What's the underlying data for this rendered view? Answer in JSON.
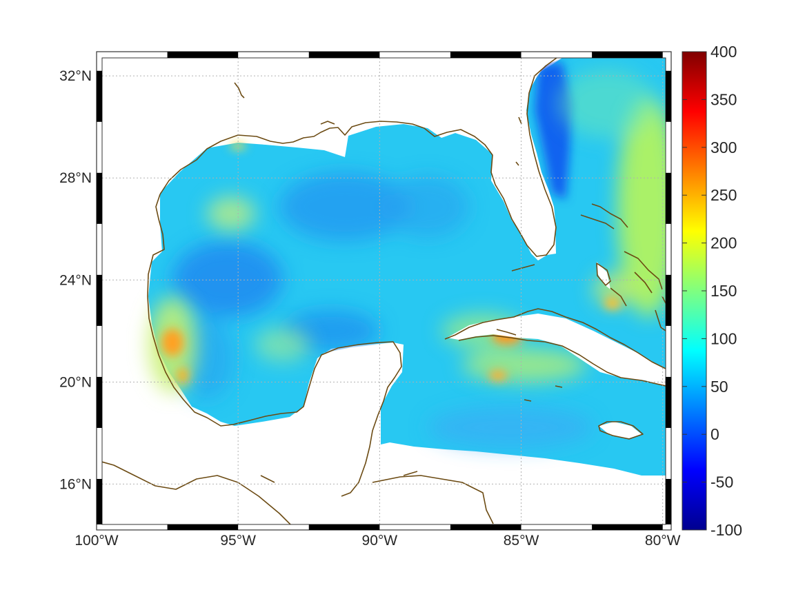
{
  "map": {
    "lon_range": [
      -100,
      -79.7
    ],
    "lat_range": [
      14.2,
      32.95
    ],
    "lat_ticks": [
      {
        "value": 32,
        "label": "32°N"
      },
      {
        "value": 28,
        "label": "28°N"
      },
      {
        "value": 24,
        "label": "24°N"
      },
      {
        "value": 20,
        "label": "20°N"
      },
      {
        "value": 16,
        "label": "16°N"
      }
    ],
    "lon_ticks": [
      {
        "value": -100,
        "label": "100°W"
      },
      {
        "value": -95,
        "label": "95°W"
      },
      {
        "value": -90,
        "label": "90°W"
      },
      {
        "value": -85,
        "label": "85°W"
      },
      {
        "value": -80,
        "label": "80°W"
      }
    ],
    "gridlines": true,
    "coastline_color": "#6b4a12",
    "colormap": "jet"
  },
  "colorbar": {
    "min": -100,
    "max": 400,
    "ticks": [
      {
        "value": 400,
        "label": "400"
      },
      {
        "value": 350,
        "label": "350"
      },
      {
        "value": 300,
        "label": "300"
      },
      {
        "value": 250,
        "label": "250"
      },
      {
        "value": 200,
        "label": "200"
      },
      {
        "value": 150,
        "label": "150"
      },
      {
        "value": 100,
        "label": "100"
      },
      {
        "value": 50,
        "label": "50"
      },
      {
        "value": 0,
        "label": "0"
      },
      {
        "value": -50,
        "label": "-50"
      },
      {
        "value": -100,
        "label": "-100"
      }
    ]
  }
}
